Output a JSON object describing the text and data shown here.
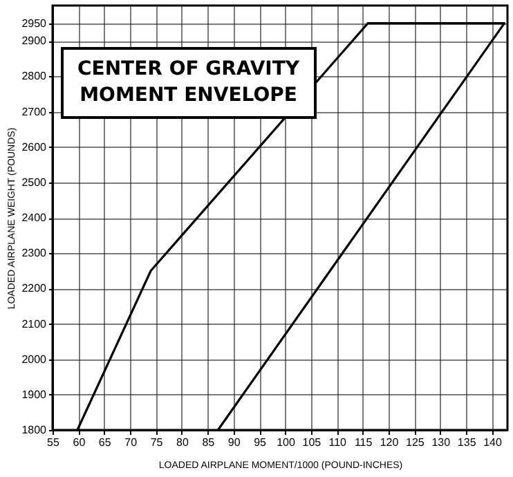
{
  "chart_data": {
    "type": "line",
    "title": "CENTER OF GRAVITY\nMOMENT ENVELOPE",
    "xlabel": "LOADED AIRPLANE MOMENT/1000 (POUND-INCHES)",
    "ylabel": "LOADED AIRPLANE WEIGHT (POUNDS)",
    "series": [
      {
        "color": "#000000",
        "x": [
          59.8,
          74,
          116,
          142.4,
          87
        ],
        "values": [
          1800,
          2250,
          2950,
          2950,
          1800
        ]
      }
    ],
    "xlim": [
      55,
      143
    ],
    "xticks": [
      55,
      60,
      65,
      70,
      75,
      80,
      85,
      90,
      95,
      100,
      105,
      110,
      115,
      120,
      125,
      130,
      135,
      140
    ],
    "ylim": [
      1800,
      3000
    ],
    "yticks": [
      1800,
      1900,
      2000,
      2100,
      2200,
      2300,
      2400,
      2500,
      2600,
      2700,
      2800,
      2900,
      2950
    ],
    "grid": true,
    "marker": "none",
    "line_style": "solid",
    "legend": false
  }
}
